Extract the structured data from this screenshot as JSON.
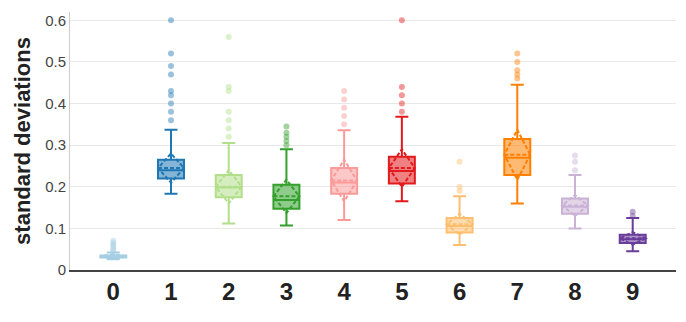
{
  "chart_data": {
    "type": "box",
    "y_label": "standard deviations",
    "categories": [
      "0",
      "1",
      "2",
      "3",
      "4",
      "5",
      "6",
      "7",
      "8",
      "9"
    ],
    "colors": [
      "#a6cee3",
      "#1f78b4",
      "#b2df8a",
      "#33a02c",
      "#fb9a99",
      "#e31a1c",
      "#fdbf6f",
      "#ff7f00",
      "#cab2d6",
      "#6a3d9a"
    ],
    "lower_fence": [
      0.026,
      0.183,
      0.112,
      0.107,
      0.12,
      0.165,
      0.06,
      0.16,
      0.1,
      0.045
    ],
    "q1": [
      0.03,
      0.22,
      0.175,
      0.147,
      0.183,
      0.208,
      0.09,
      0.228,
      0.135,
      0.065
    ],
    "median": [
      0.032,
      0.24,
      0.198,
      0.168,
      0.21,
      0.238,
      0.106,
      0.27,
      0.152,
      0.074
    ],
    "q3": [
      0.035,
      0.265,
      0.228,
      0.205,
      0.245,
      0.272,
      0.125,
      0.315,
      0.172,
      0.085
    ],
    "upper_fence": [
      0.042,
      0.337,
      0.305,
      0.29,
      0.336,
      0.368,
      0.177,
      0.445,
      0.228,
      0.125
    ],
    "mean": [
      0.033,
      0.245,
      0.2,
      0.177,
      0.215,
      0.245,
      0.11,
      0.277,
      0.155,
      0.076
    ],
    "sd": [
      0.005,
      0.035,
      0.04,
      0.04,
      0.05,
      0.045,
      0.025,
      0.06,
      0.025,
      0.015
    ],
    "outliers": [
      [
        0.045,
        0.05,
        0.055,
        0.06,
        0.065,
        0.07
      ],
      [
        0.36,
        0.38,
        0.4,
        0.42,
        0.43,
        0.47,
        0.49,
        0.52,
        0.6
      ],
      [
        0.32,
        0.34,
        0.36,
        0.38,
        0.43,
        0.44,
        0.56
      ],
      [
        0.3,
        0.31,
        0.32,
        0.33,
        0.345
      ],
      [
        0.35,
        0.37,
        0.39,
        0.41,
        0.43
      ],
      [
        0.38,
        0.4,
        0.42,
        0.44,
        0.6
      ],
      [
        0.19,
        0.2,
        0.26
      ],
      [
        0.46,
        0.47,
        0.48,
        0.5,
        0.52
      ],
      [
        0.24,
        0.26,
        0.275
      ],
      [
        0.13,
        0.14
      ]
    ],
    "ylim": [
      0,
      0.62
    ],
    "yticks": [
      0,
      0.1,
      0.2,
      0.3,
      0.4,
      0.5,
      0.6
    ],
    "grid": true
  }
}
